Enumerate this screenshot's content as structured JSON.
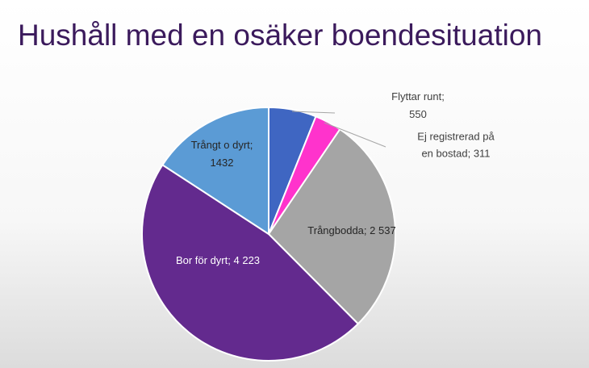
{
  "chart_data": {
    "type": "pie",
    "title": "Hushåll med en osäker boendesituation",
    "label_separator": ";",
    "categories": [
      "Flyttar runt",
      "Ej registrerad på en bostad",
      "Trångbodda",
      "Bor för dyrt",
      "Trångt o dyrt"
    ],
    "values": [
      550,
      311,
      2537,
      4223,
      1432
    ],
    "value_labels": [
      "550",
      "311",
      "2 537",
      "4 223",
      "1432"
    ],
    "colors": [
      "#3f66c2",
      "#ff33cc",
      "#a5a5a5",
      "#632a8e",
      "#5b9bd5"
    ]
  }
}
